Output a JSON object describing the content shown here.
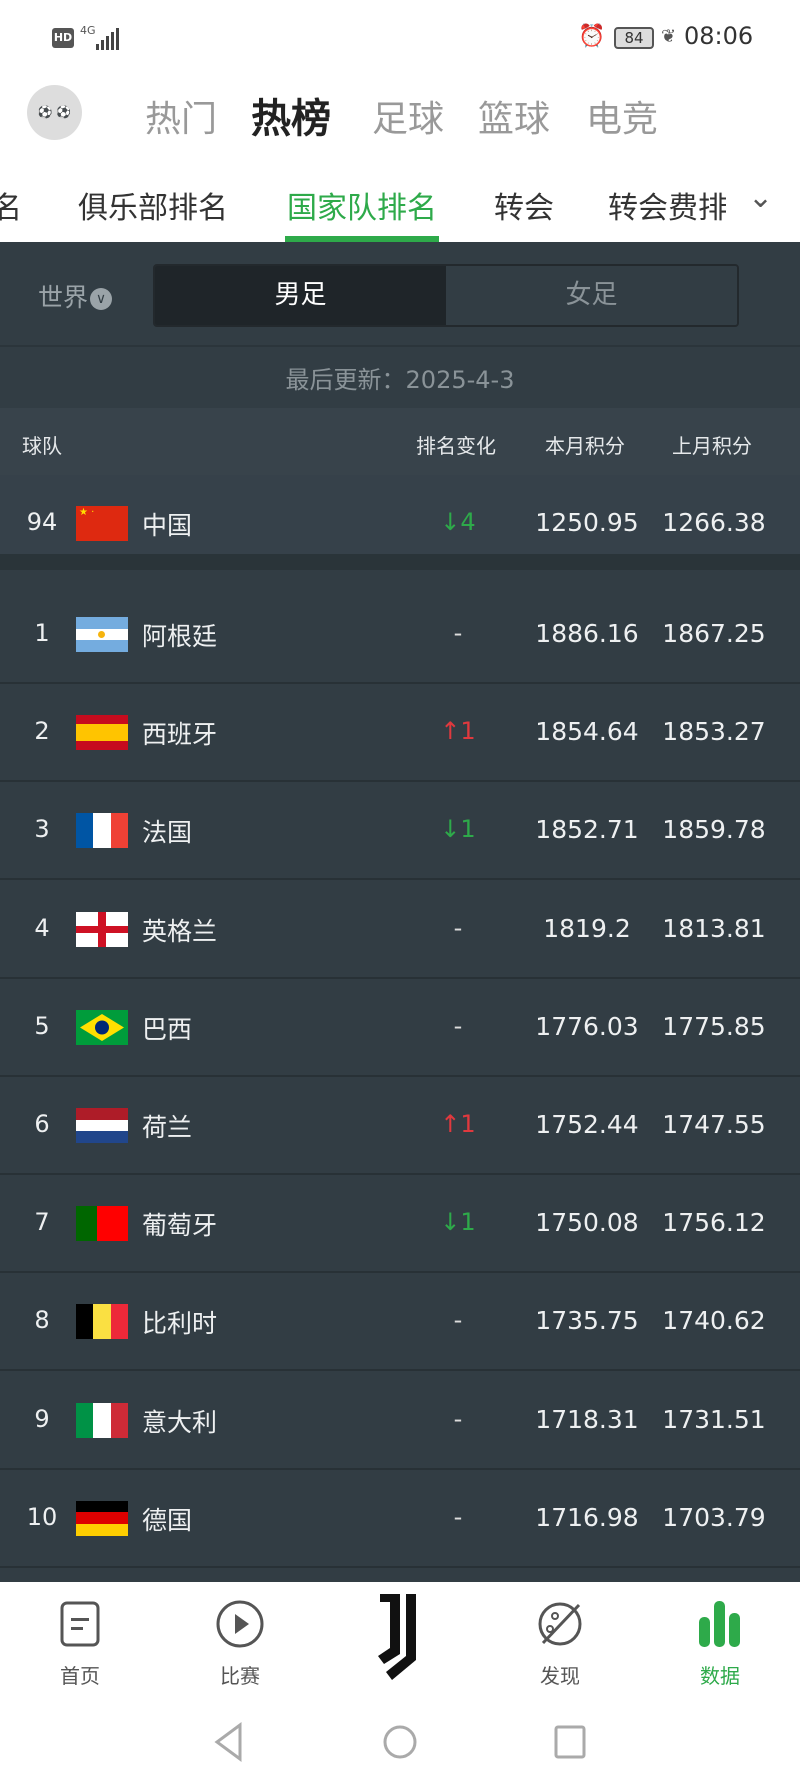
{
  "status_bar": {
    "hd": "HD",
    "network": "4G",
    "battery": "84",
    "time": "08:06"
  },
  "top_tabs": [
    {
      "label": "热门"
    },
    {
      "label": "热榜",
      "active": true
    },
    {
      "label": "足球"
    },
    {
      "label": "篮球"
    },
    {
      "label": "电竞"
    }
  ],
  "sub_tabs": [
    {
      "label": "名"
    },
    {
      "label": "俱乐部排名"
    },
    {
      "label": "国家队排名",
      "active": true
    },
    {
      "label": "转会"
    },
    {
      "label": "转会费排"
    }
  ],
  "filter": {
    "region": "世界",
    "segments": [
      {
        "label": "男足",
        "selected": true
      },
      {
        "label": "女足"
      }
    ]
  },
  "update": "最后更新：2025-4-3",
  "table": {
    "headers": {
      "team": "球队",
      "change": "排名变化",
      "current": "本月积分",
      "previous": "上月积分"
    },
    "featured": {
      "rank": "94",
      "name": "中国",
      "flag": "china",
      "change": "↓4",
      "dir": "down",
      "current": "1250.95",
      "previous": "1266.38"
    },
    "rows": [
      {
        "rank": "1",
        "name": "阿根廷",
        "flag": "argentina",
        "change": "-",
        "dir": "same",
        "current": "1886.16",
        "previous": "1867.25"
      },
      {
        "rank": "2",
        "name": "西班牙",
        "flag": "spain",
        "change": "↑1",
        "dir": "up",
        "current": "1854.64",
        "previous": "1853.27"
      },
      {
        "rank": "3",
        "name": "法国",
        "flag": "france",
        "change": "↓1",
        "dir": "down",
        "current": "1852.71",
        "previous": "1859.78"
      },
      {
        "rank": "4",
        "name": "英格兰",
        "flag": "england",
        "change": "-",
        "dir": "same",
        "current": "1819.2",
        "previous": "1813.81"
      },
      {
        "rank": "5",
        "name": "巴西",
        "flag": "brazil",
        "change": "-",
        "dir": "same",
        "current": "1776.03",
        "previous": "1775.85"
      },
      {
        "rank": "6",
        "name": "荷兰",
        "flag": "netherlands",
        "change": "↑1",
        "dir": "up",
        "current": "1752.44",
        "previous": "1747.55"
      },
      {
        "rank": "7",
        "name": "葡萄牙",
        "flag": "portugal",
        "change": "↓1",
        "dir": "down",
        "current": "1750.08",
        "previous": "1756.12"
      },
      {
        "rank": "8",
        "name": "比利时",
        "flag": "belgium",
        "change": "-",
        "dir": "same",
        "current": "1735.75",
        "previous": "1740.62"
      },
      {
        "rank": "9",
        "name": "意大利",
        "flag": "italy",
        "change": "-",
        "dir": "same",
        "current": "1718.31",
        "previous": "1731.51"
      },
      {
        "rank": "10",
        "name": "德国",
        "flag": "germany",
        "change": "-",
        "dir": "same",
        "current": "1716.98",
        "previous": "1703.79"
      }
    ]
  },
  "bottom_nav": [
    {
      "label": "首页",
      "icon": "document-icon"
    },
    {
      "label": "比赛",
      "icon": "play-icon"
    },
    {
      "label": "",
      "icon": "juventus-logo"
    },
    {
      "label": "发现",
      "icon": "planet-icon"
    },
    {
      "label": "数据",
      "icon": "bar-chart-icon",
      "active": true
    }
  ],
  "colors": {
    "accent": "#2eaa4a",
    "up": "#e0393e",
    "down": "#2eaa4a",
    "background": "#323d44"
  }
}
